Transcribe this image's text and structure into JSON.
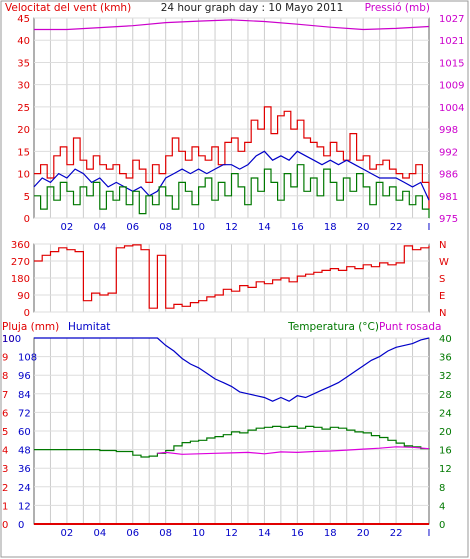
{
  "chart_data": [
    {
      "panel": "wind-pressure",
      "type": "line",
      "title": "24 hour graph day : 10 Mayo 2011",
      "left_axis_label": "Velocitat del vent (kmh)",
      "right_axis_label": "Pressió (mb)",
      "x_ticks": [
        "02",
        "04",
        "06",
        "08",
        "10",
        "12",
        "14",
        "16",
        "18",
        "20",
        "22",
        "I"
      ],
      "xlim": [
        0,
        24
      ],
      "left_ticks": [
        "0",
        "5",
        "10",
        "15",
        "20",
        "25",
        "30",
        "35",
        "40",
        "45"
      ],
      "left_ylim": [
        0,
        45
      ],
      "right_ticks": [
        "975",
        "981",
        "986",
        "992",
        "998",
        "1004",
        "1009",
        "1015",
        "1021",
        "1027"
      ],
      "right_ylim": [
        975,
        1027
      ],
      "grid": true,
      "series": [
        {
          "axis": "left",
          "color": "#e00000",
          "step": true,
          "x": [
            0,
            0.4,
            0.8,
            1.2,
            1.6,
            2,
            2.4,
            2.8,
            3.2,
            3.6,
            4,
            4.4,
            4.8,
            5.2,
            5.6,
            6,
            6.4,
            6.8,
            7.2,
            7.6,
            8,
            8.4,
            8.8,
            9.2,
            9.6,
            10,
            10.4,
            10.8,
            11.2,
            11.6,
            12,
            12.4,
            12.8,
            13.2,
            13.6,
            14,
            14.4,
            14.8,
            15.2,
            15.6,
            16,
            16.4,
            16.8,
            17.2,
            17.6,
            18,
            18.4,
            18.8,
            19.2,
            19.6,
            20,
            20.4,
            20.8,
            21.2,
            21.6,
            22,
            22.4,
            22.8,
            23.2,
            23.6,
            24
          ],
          "y": [
            10,
            12,
            9,
            14,
            16,
            12,
            18,
            13,
            11,
            14,
            12,
            11,
            12,
            10,
            9,
            13,
            11,
            8,
            12,
            10,
            14,
            18,
            15,
            13,
            16,
            14,
            13,
            16,
            12,
            17,
            18,
            15,
            17,
            22,
            20,
            25,
            19,
            23,
            24,
            20,
            22,
            18,
            17,
            16,
            14,
            17,
            15,
            13,
            19,
            13,
            14,
            11,
            12,
            13,
            11,
            10,
            9,
            10,
            12,
            8,
            2
          ]
        },
        {
          "axis": "left",
          "color": "#0000c8",
          "step": false,
          "x": [
            0,
            0.5,
            1,
            1.5,
            2,
            2.5,
            3,
            3.5,
            4,
            4.5,
            5,
            5.5,
            6,
            6.5,
            7,
            7.5,
            8,
            8.5,
            9,
            9.5,
            10,
            10.5,
            11,
            11.5,
            12,
            12.5,
            13,
            13.5,
            14,
            14.5,
            15,
            15.5,
            16,
            16.5,
            17,
            17.5,
            18,
            18.5,
            19,
            19.5,
            20,
            20.5,
            21,
            21.5,
            22,
            22.5,
            23,
            23.5,
            24
          ],
          "y": [
            7,
            9,
            8,
            10,
            9,
            11,
            10,
            8,
            9,
            7,
            8,
            7,
            6,
            7,
            5,
            6,
            9,
            10,
            11,
            10,
            11,
            10,
            11,
            12,
            12,
            11,
            12,
            14,
            15,
            13,
            14,
            13,
            15,
            14,
            13,
            12,
            13,
            12,
            13,
            12,
            11,
            10,
            9,
            9,
            9,
            8,
            7,
            8,
            4
          ]
        },
        {
          "axis": "left",
          "color": "#007800",
          "step": true,
          "x": [
            0,
            0.4,
            0.8,
            1.2,
            1.6,
            2,
            2.4,
            2.8,
            3.2,
            3.6,
            4,
            4.4,
            4.8,
            5.2,
            5.6,
            6,
            6.4,
            6.8,
            7.2,
            7.6,
            8,
            8.4,
            8.8,
            9.2,
            9.6,
            10,
            10.4,
            10.8,
            11.2,
            11.6,
            12,
            12.4,
            12.8,
            13.2,
            13.6,
            14,
            14.4,
            14.8,
            15.2,
            15.6,
            16,
            16.4,
            16.8,
            17.2,
            17.6,
            18,
            18.4,
            18.8,
            19.2,
            19.6,
            20,
            20.4,
            20.8,
            21.2,
            21.6,
            22,
            22.4,
            22.8,
            23.2,
            23.6,
            24
          ],
          "y": [
            5,
            2,
            7,
            4,
            8,
            6,
            3,
            7,
            5,
            8,
            2,
            6,
            4,
            7,
            3,
            6,
            1,
            5,
            3,
            7,
            5,
            2,
            8,
            6,
            3,
            7,
            9,
            4,
            8,
            5,
            10,
            7,
            3,
            9,
            6,
            11,
            8,
            4,
            10,
            7,
            12,
            6,
            9,
            5,
            11,
            8,
            4,
            9,
            6,
            10,
            7,
            3,
            8,
            5,
            7,
            4,
            6,
            3,
            5,
            2,
            0
          ]
        },
        {
          "axis": "right",
          "color": "#cc00cc",
          "step": false,
          "x": [
            0,
            2,
            4,
            6,
            8,
            10,
            12,
            14,
            16,
            18,
            20,
            22,
            24
          ],
          "y": [
            1024,
            1024,
            1024.5,
            1025,
            1025.8,
            1026.2,
            1026.5,
            1026.1,
            1025.4,
            1024.6,
            1024,
            1024.3,
            1024.8
          ]
        }
      ]
    },
    {
      "panel": "wind-direction",
      "type": "line",
      "left_ticks": [
        "0",
        "90",
        "180",
        "270",
        "360"
      ],
      "ylim": [
        0,
        360
      ],
      "right_ticks": [
        "N",
        "E",
        "S",
        "W",
        "N"
      ],
      "xlim": [
        0,
        24
      ],
      "grid": true,
      "series": [
        {
          "color": "#e00000",
          "step": true,
          "x": [
            0,
            0.5,
            1,
            1.5,
            2,
            2.5,
            3,
            3.5,
            4,
            4.5,
            5,
            5.5,
            6,
            6.5,
            7,
            7.5,
            8,
            8.5,
            9,
            9.5,
            10,
            10.5,
            11,
            11.5,
            12,
            12.5,
            13,
            13.5,
            14,
            14.5,
            15,
            15.5,
            16,
            16.5,
            17,
            17.5,
            18,
            18.5,
            19,
            19.5,
            20,
            20.5,
            21,
            21.5,
            22,
            22.5,
            23,
            23.5,
            24
          ],
          "y": [
            270,
            300,
            320,
            340,
            330,
            320,
            60,
            100,
            90,
            100,
            340,
            350,
            355,
            330,
            20,
            300,
            20,
            40,
            30,
            50,
            60,
            80,
            90,
            120,
            110,
            140,
            130,
            160,
            150,
            170,
            180,
            160,
            190,
            200,
            210,
            220,
            230,
            220,
            240,
            230,
            250,
            240,
            260,
            250,
            260,
            350,
            330,
            340,
            350
          ]
        }
      ]
    },
    {
      "panel": "rain-humidity-temperature",
      "type": "line",
      "left_axis_labels": [
        "Pluja (mm)",
        "Humitat"
      ],
      "right_axis_label": "Temperatura (°C)",
      "right_axis_label_2": "Punt rosada",
      "x_ticks": [
        "02",
        "04",
        "06",
        "08",
        "10",
        "12",
        "14",
        "16",
        "18",
        "20",
        "22",
        "I"
      ],
      "xlim": [
        0,
        24
      ],
      "rain_ticks": [
        "0",
        "1",
        "2",
        "3",
        "4",
        "5",
        "6",
        "7",
        "8",
        "9",
        "10"
      ],
      "humidity_ticks": [
        "0",
        "12",
        "24",
        "36",
        "48",
        "60",
        "72",
        "84",
        "96",
        "108"
      ],
      "humidity_ticks_top": [
        "100"
      ],
      "left_ylim": [
        0,
        100
      ],
      "right_ticks": [
        "0",
        "4",
        "8",
        "12",
        "16",
        "20",
        "24",
        "28",
        "32",
        "36",
        "40"
      ],
      "right_ylim": [
        0,
        40
      ],
      "grid": true,
      "series": [
        {
          "name": "Humitat",
          "axis": "left",
          "color": "#0000c8",
          "step": false,
          "x": [
            0,
            1,
            2,
            3,
            4,
            5,
            6,
            7,
            7.5,
            8,
            8.5,
            9,
            9.5,
            10,
            10.5,
            11,
            11.5,
            12,
            12.5,
            13,
            13.5,
            14,
            14.5,
            15,
            15.5,
            16,
            16.5,
            17,
            17.5,
            18,
            18.5,
            19,
            19.5,
            20,
            20.5,
            21,
            21.5,
            22,
            22.5,
            23,
            23.5,
            24
          ],
          "y": [
            100,
            100,
            100,
            100,
            100,
            100,
            100,
            100,
            100,
            96,
            93,
            89,
            86,
            84,
            81,
            78,
            76,
            74,
            71,
            70,
            69,
            68,
            66,
            68,
            66,
            69,
            68,
            70,
            72,
            74,
            76,
            79,
            82,
            85,
            88,
            90,
            93,
            95,
            96,
            97,
            99,
            100
          ]
        },
        {
          "name": "Temperatura (°C)",
          "axis": "right",
          "color": "#007800",
          "step": true,
          "x": [
            0,
            1,
            2,
            3,
            4,
            5,
            6,
            6.5,
            7,
            7.5,
            8,
            8.5,
            9,
            9.5,
            10,
            10.5,
            11,
            11.5,
            12,
            12.5,
            13,
            13.5,
            14,
            14.5,
            15,
            15.5,
            16,
            16.5,
            17,
            17.5,
            18,
            18.5,
            19,
            19.5,
            20,
            20.5,
            21,
            21.5,
            22,
            22.5,
            23,
            23.5,
            24
          ],
          "y": [
            16,
            16,
            16,
            16,
            15.8,
            15.6,
            14.8,
            14.4,
            14.6,
            15.2,
            15.8,
            16.8,
            17.5,
            17.8,
            18,
            18.5,
            18.8,
            19.2,
            19.8,
            19.6,
            20.2,
            20.6,
            20.8,
            21,
            20.8,
            21,
            20.6,
            21,
            20.8,
            20.4,
            20.8,
            20.6,
            20.2,
            19.8,
            19.6,
            19,
            18.6,
            18,
            17.4,
            16.8,
            16.6,
            16.2,
            16
          ]
        },
        {
          "name": "Punt rosada",
          "axis": "right",
          "color": "#dd00dd",
          "step": false,
          "x": [
            7.5,
            8,
            9,
            10,
            11,
            12,
            13,
            14,
            15,
            16,
            17,
            18,
            19,
            20,
            21,
            22,
            23,
            24
          ],
          "y": [
            15.2,
            15.4,
            15,
            15.1,
            15.2,
            15.3,
            15.4,
            15.1,
            15.5,
            15.4,
            15.6,
            15.7,
            15.9,
            16.1,
            16.3,
            16.6,
            16.5,
            16.2
          ]
        },
        {
          "name": "Pluja (mm)",
          "axis": "rain",
          "color": "#e00000",
          "step": false,
          "x": [
            0,
            24
          ],
          "y": [
            0,
            0
          ]
        }
      ]
    }
  ]
}
